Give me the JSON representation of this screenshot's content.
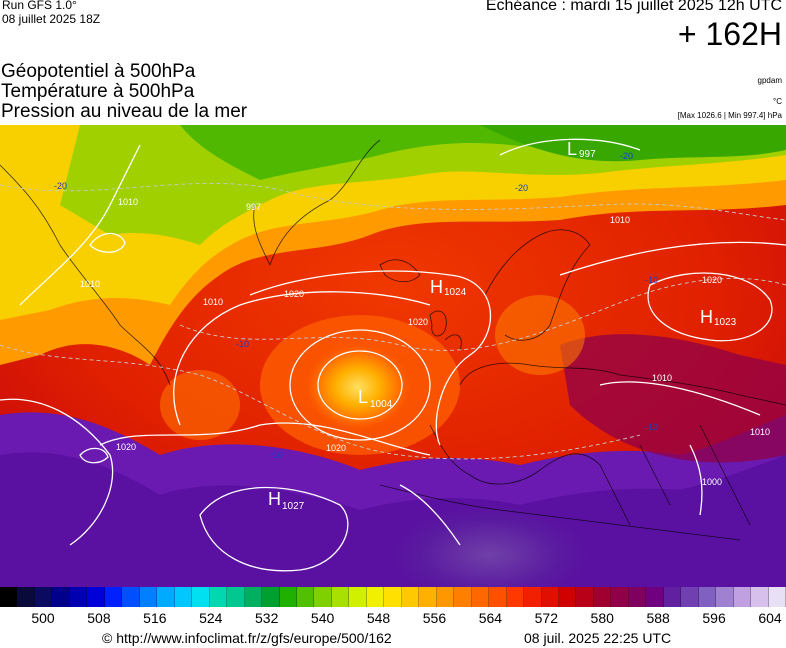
{
  "header": {
    "run": "Run GFS 1.0°",
    "run_date": "08 juillet 2025 18Z",
    "echeance": "Echéance : mardi 15 juillet 2025 12h UTC",
    "lead": "+ 162H"
  },
  "titles": [
    "Géopotentiel à 500hPa",
    "Température à 500hPa",
    "Pression au niveau de la mer"
  ],
  "units": {
    "geopotential": "gpdam",
    "temperature": "°C",
    "pressure": "[Max 1026.6 | Min 997.4] hPa"
  },
  "map": {
    "highs": [
      {
        "letter": "H",
        "value": "1024"
      },
      {
        "letter": "H",
        "value": "1023"
      },
      {
        "letter": "H",
        "value": "1027"
      }
    ],
    "lows": [
      {
        "letter": "L",
        "value": "1004"
      },
      {
        "letter": "L",
        "value": "997"
      }
    ],
    "isobar_labels": [
      "1010",
      "1010",
      "1020",
      "1020",
      "1020",
      "1020",
      "1010",
      "1010",
      "1010",
      "1000",
      "997",
      "1020",
      "1010"
    ],
    "temperature_labels": [
      "-20",
      "-20",
      "-10",
      "-10",
      "-10",
      "-10",
      "-20"
    ]
  },
  "colorbar": {
    "ticks": [
      "500",
      "508",
      "516",
      "524",
      "532",
      "540",
      "548",
      "556",
      "564",
      "572",
      "580",
      "588",
      "596",
      "604"
    ],
    "colors": [
      "#000000",
      "#0a0a3a",
      "#0a0a60",
      "#00008a",
      "#0000b0",
      "#0000d8",
      "#0020ff",
      "#0050ff",
      "#0080ff",
      "#00aaff",
      "#00c8ff",
      "#00e0f0",
      "#00d8b0",
      "#00c890",
      "#00b060",
      "#00a030",
      "#20b000",
      "#50c000",
      "#80d000",
      "#a8e000",
      "#d0f000",
      "#f0f000",
      "#ffe000",
      "#ffc800",
      "#ffb000",
      "#ff9800",
      "#ff8000",
      "#ff6800",
      "#ff5000",
      "#ff3800",
      "#f02000",
      "#e01000",
      "#d00000",
      "#b80018",
      "#a00030",
      "#900048",
      "#800060",
      "#700080",
      "#6020a0",
      "#7040b0",
      "#8060c0",
      "#a080d0",
      "#c0a0e0",
      "#d8c0ec",
      "#e8e0f4"
    ]
  },
  "footer": {
    "url": "© http://www.infoclimat.fr/z/gfs/europe/500/162",
    "timestamp": "08 juil. 2025 22:25 UTC"
  }
}
